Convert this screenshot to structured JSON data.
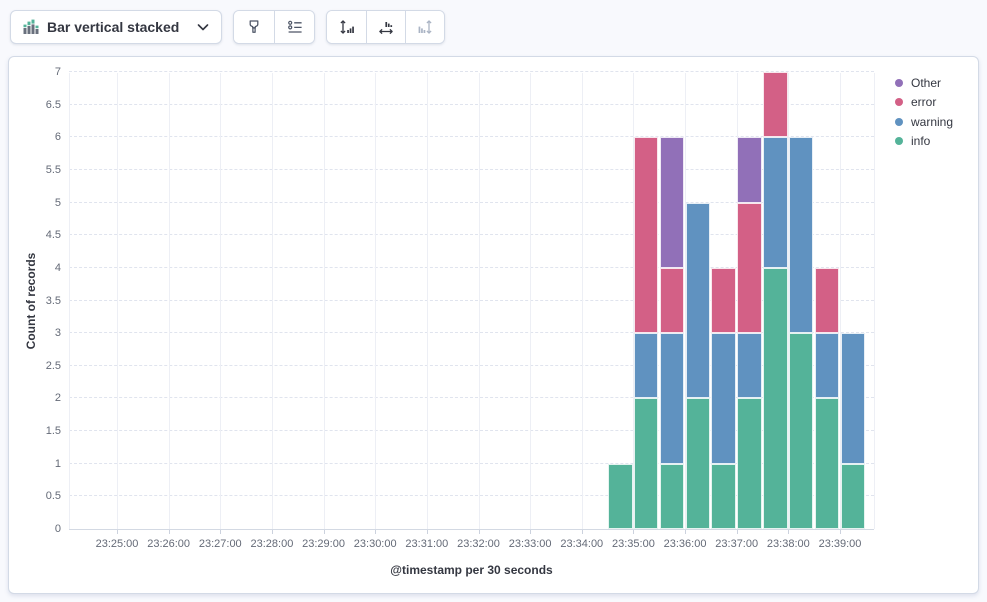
{
  "toolbar": {
    "chart_type_label": "Bar vertical stacked",
    "chart_type_icon": "bar-vertical-stacked-icon",
    "dropdown_icon": "chevron-down-icon",
    "buttons": [
      {
        "name": "visual-options-button",
        "icon": "brush-icon",
        "enabled": true
      },
      {
        "name": "legend-settings-button",
        "icon": "list-icon",
        "enabled": true
      },
      {
        "name": "left-axis-button",
        "icon": "vertical-arrows-bars-icon",
        "enabled": true
      },
      {
        "name": "bottom-axis-button",
        "icon": "horizontal-arrows-bars-icon",
        "enabled": true
      },
      {
        "name": "right-axis-button",
        "icon": "bars-vertical-arrows-icon",
        "enabled": false
      }
    ]
  },
  "chart_data": {
    "type": "bar",
    "stacked": true,
    "orientation": "vertical",
    "ylabel": "Count of records",
    "xlabel": "@timestamp per 30 seconds",
    "ylim": [
      0,
      7
    ],
    "y_tick_step": 0.5,
    "x_tick_labels": [
      "23:25:00",
      "23:26:00",
      "23:27:00",
      "23:28:00",
      "23:29:00",
      "23:30:00",
      "23:31:00",
      "23:32:00",
      "23:33:00",
      "23:34:00",
      "23:35:00",
      "23:36:00",
      "23:37:00",
      "23:38:00",
      "23:39:00"
    ],
    "categories": [
      "23:34:30",
      "23:35:00",
      "23:35:30",
      "23:36:00",
      "23:36:30",
      "23:37:00",
      "23:37:30",
      "23:38:00",
      "23:38:30",
      "23:39:00"
    ],
    "series": [
      {
        "name": "info",
        "color": "#54B399",
        "values": [
          1,
          2,
          1,
          2,
          1,
          2,
          4,
          3,
          2,
          1
        ]
      },
      {
        "name": "warning",
        "color": "#6092C0",
        "values": [
          0,
          1,
          2,
          3,
          2,
          1,
          2,
          3,
          1,
          2
        ]
      },
      {
        "name": "error",
        "color": "#D36086",
        "values": [
          0,
          3,
          1,
          0,
          1,
          2,
          1,
          0,
          1,
          0
        ]
      },
      {
        "name": "Other",
        "color": "#9170B8",
        "values": [
          0,
          0,
          2,
          0,
          0,
          1,
          0,
          0,
          0,
          0
        ]
      }
    ],
    "stack_order_bottom_to_top": [
      "info",
      "warning",
      "error",
      "Other"
    ],
    "legend_order": [
      "Other",
      "error",
      "warning",
      "info"
    ],
    "legend_position": "right",
    "grid": {
      "horizontal": "dashed",
      "vertical": "solid"
    }
  }
}
